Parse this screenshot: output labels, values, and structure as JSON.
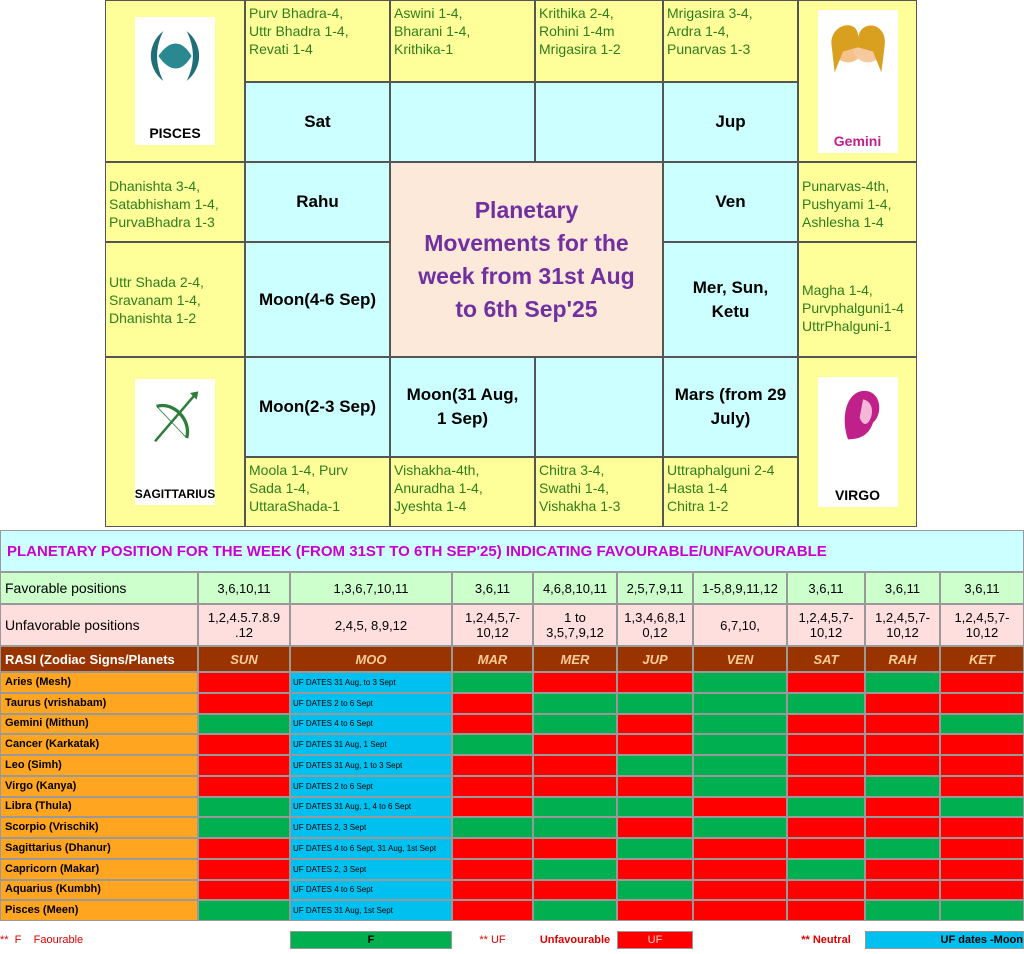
{
  "rasi_chart": {
    "signs": {
      "pisces": "PISCES",
      "gemini": "Gemini",
      "sagittarius": "SAGITTARIUS",
      "virgo": "VIRGO"
    },
    "top_nakshatras": [
      "Purv Bhadra-4,\nUttr Bhadra 1-4,\nRevati 1-4",
      "Aswini 1-4,\nBharani 1-4,\nKrithika-1",
      "Krithika 2-4,\nRohini 1-4m\nMrigasira 1-2",
      "Mrigasira 3-4,\nArdra 1-4,\nPunarvas 1-3"
    ],
    "left_nakshatras": [
      "Dhanishta 3-4,\nSatabhisham 1-4,\nPurvaBhadra 1-3",
      "Uttr Shada 2-4,\nSravanam 1-4,\nDhanishta 1-2"
    ],
    "right_nakshatras": [
      "Punarvas-4th,\nPushyami 1-4,\nAshlesha 1-4",
      "Magha 1-4,\nPurvphalguni1-4\nUttrPhalguni-1"
    ],
    "bottom_nakshatras": [
      "Moola 1-4,          Purv\nSada 1-4,\nUttaraShada-1",
      "Vishakha-4th,\nAnuradha 1-4,\nJyeshta 1-4",
      "Chitra 3-4,\nSwathi 1-4,\nVishakha 1-3",
      "Uttraphalguni 2-4\nHasta 1-4\nChitra 1-2"
    ],
    "planets": {
      "top_left": "Sat",
      "top_right": "Jup",
      "left_upper": "Rahu",
      "left_lower": "Moon(4-6 Sep)",
      "bottom_left": "Moon(2-3 Sep)",
      "bottom_mid": "Moon(31 Aug,\n1 Sep)",
      "right_upper": "Ven",
      "right_lower": "Mer, Sun,\nKetu",
      "bottom_right": "Mars (from 29\nJuly)"
    },
    "center_title": "Planetary\nMovements for the\nweek from 31st Aug\nto 6th Sep'25"
  },
  "table": {
    "title": "PLANETARY POSITION FOR THE WEEK (FROM 31ST TO 6TH SEP'25) INDICATING FAVOURABLE/UNFAVOURABLE",
    "favorable": {
      "label": "Favorable positions",
      "values": [
        "3,6,10,11",
        "1,3,6,7,10,11",
        "3,6,11",
        "4,6,8,10,11",
        "2,5,7,9,11",
        "1-5,8,9,11,12",
        "3,6,11",
        "3,6,11",
        "3,6,11"
      ]
    },
    "unfavorable": {
      "label": "Unfavorable positions",
      "values": [
        "1,2,4.5.7.8.9\n.12",
        "2,4,5, 8,9,12",
        "1,2,4,5,7-\n10,12",
        "1 to\n3,5,7,9,12",
        "1,3,4,6,8,1\n0,12",
        "6,7,10,",
        "1,2,4,5,7-\n10,12",
        "1,2,4,5,7-\n10,12",
        "1,2,4,5,7-\n10,12"
      ]
    },
    "headers": [
      "RASI (Zodiac Signs/Planets",
      "SUN",
      "MOO",
      "MAR",
      "MER",
      "JUP",
      "VEN",
      "SAT",
      "RAH",
      "KET"
    ],
    "green": "#00b050",
    "red": "#ff0000",
    "rows": [
      {
        "name": "Aries (Mesh)",
        "moon": "UF DATES 31 Aug, to 3 Sept",
        "colors": [
          "red",
          "green",
          "red",
          "red",
          "green",
          "red",
          "green",
          "red"
        ]
      },
      {
        "name": "Taurus (vrishabam)",
        "moon": "UF DATES 2 to 6 Sept",
        "colors": [
          "red",
          "red",
          "green",
          "green",
          "green",
          "green",
          "red",
          "red"
        ]
      },
      {
        "name": "Gemini (Mithun)",
        "moon": "UF DATES 4 to 6 Sept",
        "colors": [
          "green",
          "red",
          "green",
          "red",
          "green",
          "red",
          "red",
          "green"
        ]
      },
      {
        "name": "Cancer (Karkatak)",
        "moon": "UF DATES 31 Aug, 1 Sept",
        "colors": [
          "red",
          "green",
          "red",
          "red",
          "green",
          "red",
          "red",
          "red"
        ]
      },
      {
        "name": "Leo (Simh)",
        "moon": "UF DATES 31 Aug, 1 to 3 Sept",
        "colors": [
          "red",
          "red",
          "red",
          "green",
          "green",
          "red",
          "red",
          "red"
        ]
      },
      {
        "name": "Virgo (Kanya)",
        "moon": "UF DATES 2 to 6 Sept",
        "colors": [
          "red",
          "red",
          "red",
          "red",
          "green",
          "red",
          "green",
          "red"
        ]
      },
      {
        "name": "Libra (Thula)",
        "moon": "UF DATES 31 Aug, 1, 4 to 6 Sept",
        "colors": [
          "green",
          "red",
          "green",
          "green",
          "red",
          "green",
          "red",
          "green"
        ]
      },
      {
        "name": "Scorpio (Vrischik)",
        "moon": "UF DATES 2, 3 Sept",
        "colors": [
          "green",
          "green",
          "green",
          "red",
          "green",
          "red",
          "red",
          "red"
        ]
      },
      {
        "name": "Sagittarius (Dhanur)",
        "moon": "UF DATES 4 to 6 Sept, 31 Aug, 1st Sept",
        "colors": [
          "red",
          "red",
          "red",
          "green",
          "red",
          "red",
          "green",
          "red"
        ]
      },
      {
        "name": "Capricorn (Makar)",
        "moon": "UF DATES 2, 3 Sept",
        "colors": [
          "red",
          "red",
          "green",
          "red",
          "red",
          "green",
          "red",
          "red"
        ]
      },
      {
        "name": "Aquarius (Kumbh)",
        "moon": "UF DATES 4 to 6 Sept",
        "colors": [
          "red",
          "red",
          "red",
          "green",
          "red",
          "red",
          "red",
          "red"
        ]
      },
      {
        "name": "Pisces (Meen)",
        "moon": "UF DATES  31 Aug, 1st Sept",
        "colors": [
          "green",
          "red",
          "green",
          "red",
          "red",
          "red",
          "green",
          "green"
        ]
      }
    ],
    "legend": {
      "favourable_note": "**  F    Faourable",
      "favourable_swatch": "F",
      "unfavourable_note": "** UF",
      "unfavourable_text": "Unfavourable",
      "unfavourable_swatch": "UF",
      "neutral_note": "** Neutral",
      "moon_swatch": "UF dates -Moon"
    }
  }
}
